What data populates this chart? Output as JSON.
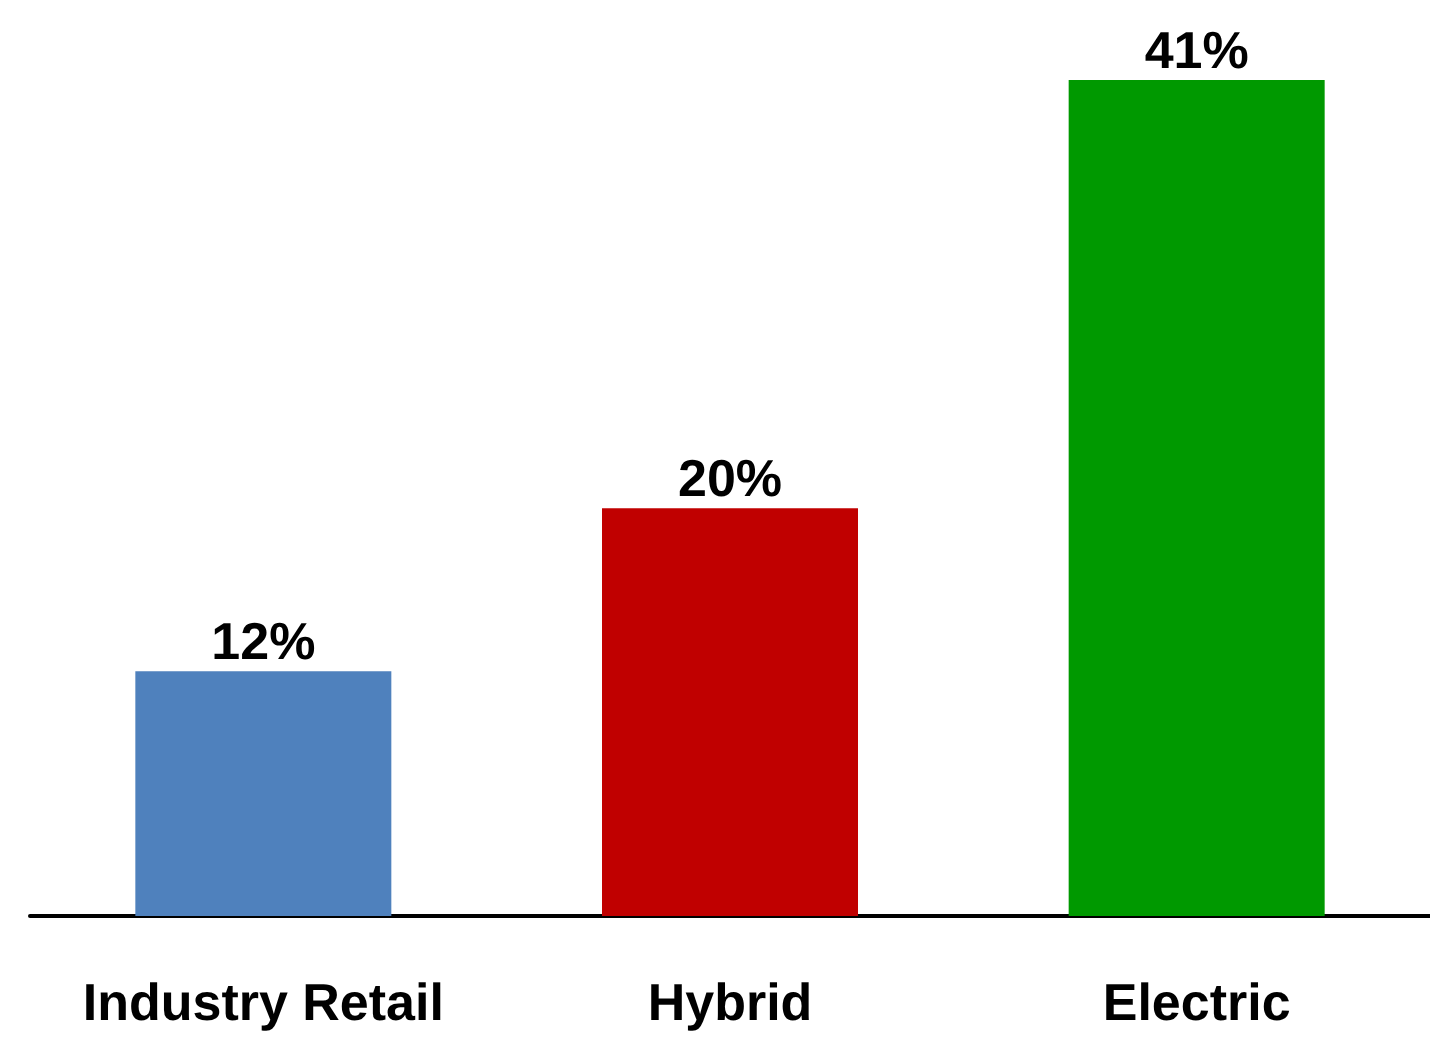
{
  "chart_data": {
    "type": "bar",
    "categories": [
      "Industry Retail",
      "Hybrid",
      "Electric"
    ],
    "values": [
      12,
      20,
      41
    ],
    "colors": [
      "#4f81bd",
      "#c00000",
      "#009900"
    ],
    "value_labels": [
      "12%",
      "20%",
      "41%"
    ]
  }
}
